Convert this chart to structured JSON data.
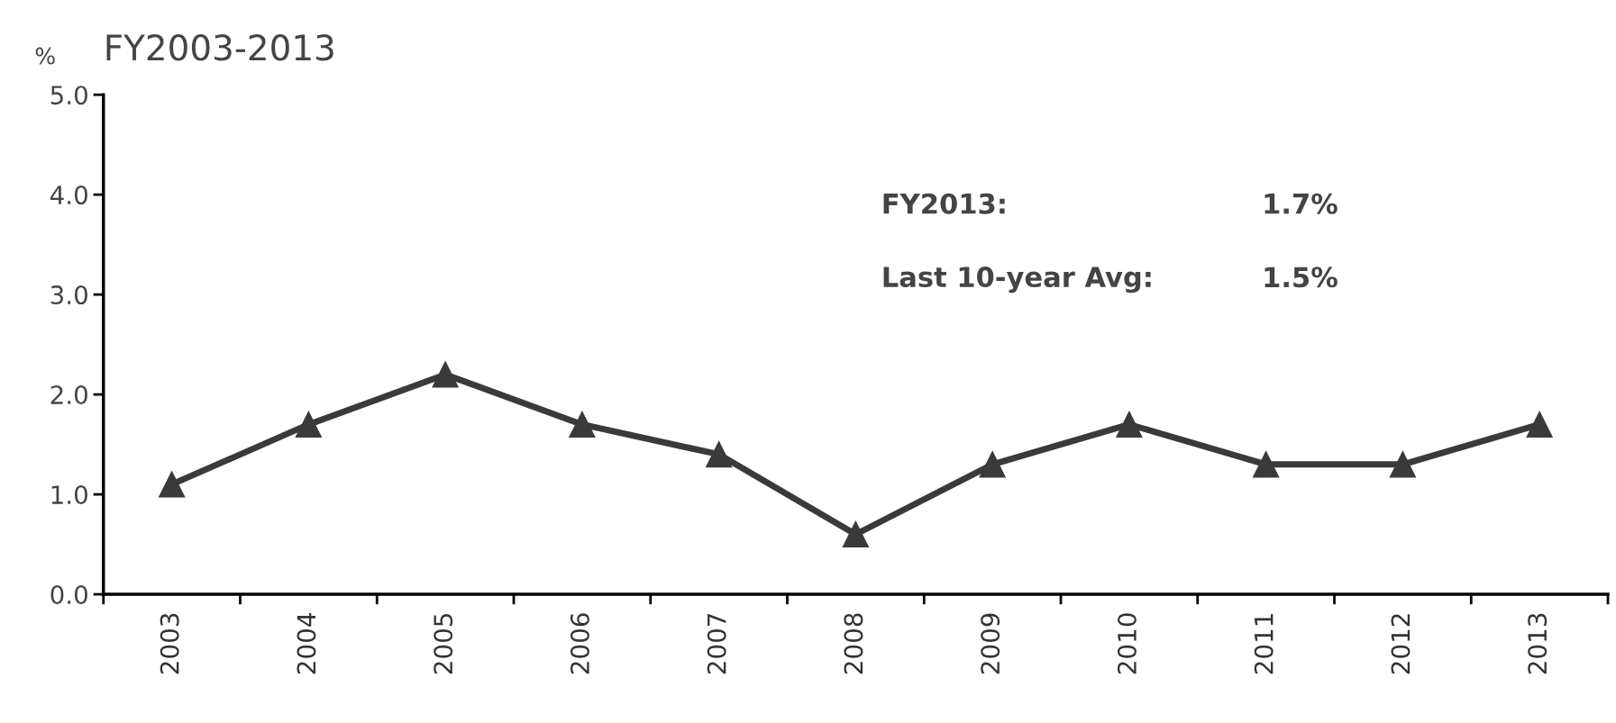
{
  "chart_data": {
    "type": "line",
    "title": "FY2003-2013",
    "ylabel": "%",
    "categories": [
      "2003",
      "2004",
      "2005",
      "2006",
      "2007",
      "2008",
      "2009",
      "2010",
      "2011",
      "2012",
      "2013"
    ],
    "series": [
      {
        "color": "#3a3a3a",
        "values": [
          1.1,
          1.7,
          2.2,
          1.7,
          1.4,
          0.6,
          1.3,
          1.7,
          1.3,
          1.3,
          1.7
        ]
      }
    ],
    "ylim": [
      0,
      5
    ],
    "yticks": [
      {
        "value": 0,
        "label": "0.0"
      },
      {
        "value": 1,
        "label": "1.0"
      },
      {
        "value": 2,
        "label": "2.0"
      },
      {
        "value": 3,
        "label": "3.0"
      },
      {
        "value": 4,
        "label": "4.0"
      },
      {
        "value": 5,
        "label": "5.0"
      }
    ],
    "annotations": [
      "FY2013:",
      "1.7%",
      "Last 10-year Avg:",
      "1.5%"
    ],
    "marker": "triangle",
    "line_style": "solid",
    "grid": false,
    "legend": false
  }
}
